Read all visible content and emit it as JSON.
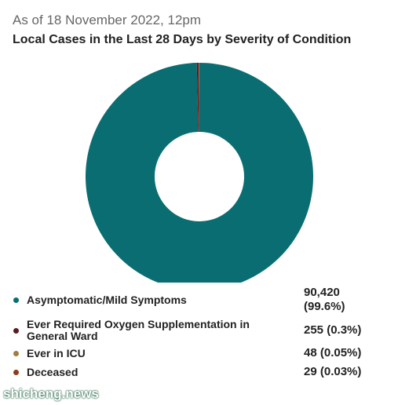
{
  "chart_data": {
    "type": "pie",
    "donut": true,
    "subtitle": "As of 18 November 2022, 12pm",
    "title": "Local Cases in the Last 28 Days by Severity of Condition",
    "categories": [
      "Asymptomatic/Mild Symptoms",
      "Ever Required Oxygen Supplementation in General Ward",
      "Ever in ICU",
      "Deceased"
    ],
    "values": [
      90420,
      255,
      48,
      29
    ],
    "value_labels": [
      "90,420 (99.6%)",
      "255 (0.3%)",
      "48 (0.05%)",
      "29 (0.03%)"
    ],
    "colors": [
      "#0a6d72",
      "#5a1a22",
      "#a27d3c",
      "#8e3a1c"
    ]
  },
  "watermark": "shicheng.news"
}
